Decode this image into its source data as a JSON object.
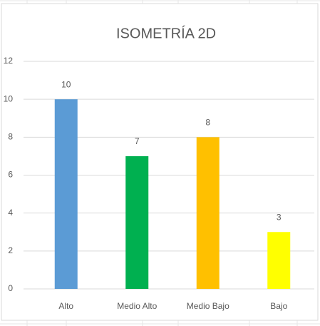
{
  "chart_data": {
    "type": "bar",
    "title": "ISOMETRÍA 2D",
    "categories": [
      "Alto",
      "Medio Alto",
      "Medio Bajo",
      "Bajo"
    ],
    "values": [
      10,
      7,
      8,
      3
    ],
    "colors": [
      "#5b9bd5",
      "#00b050",
      "#ffc000",
      "#ffff00"
    ],
    "ylim": [
      0,
      12
    ],
    "yticks": [
      0,
      2,
      4,
      6,
      8,
      10,
      12
    ],
    "grid": true
  }
}
